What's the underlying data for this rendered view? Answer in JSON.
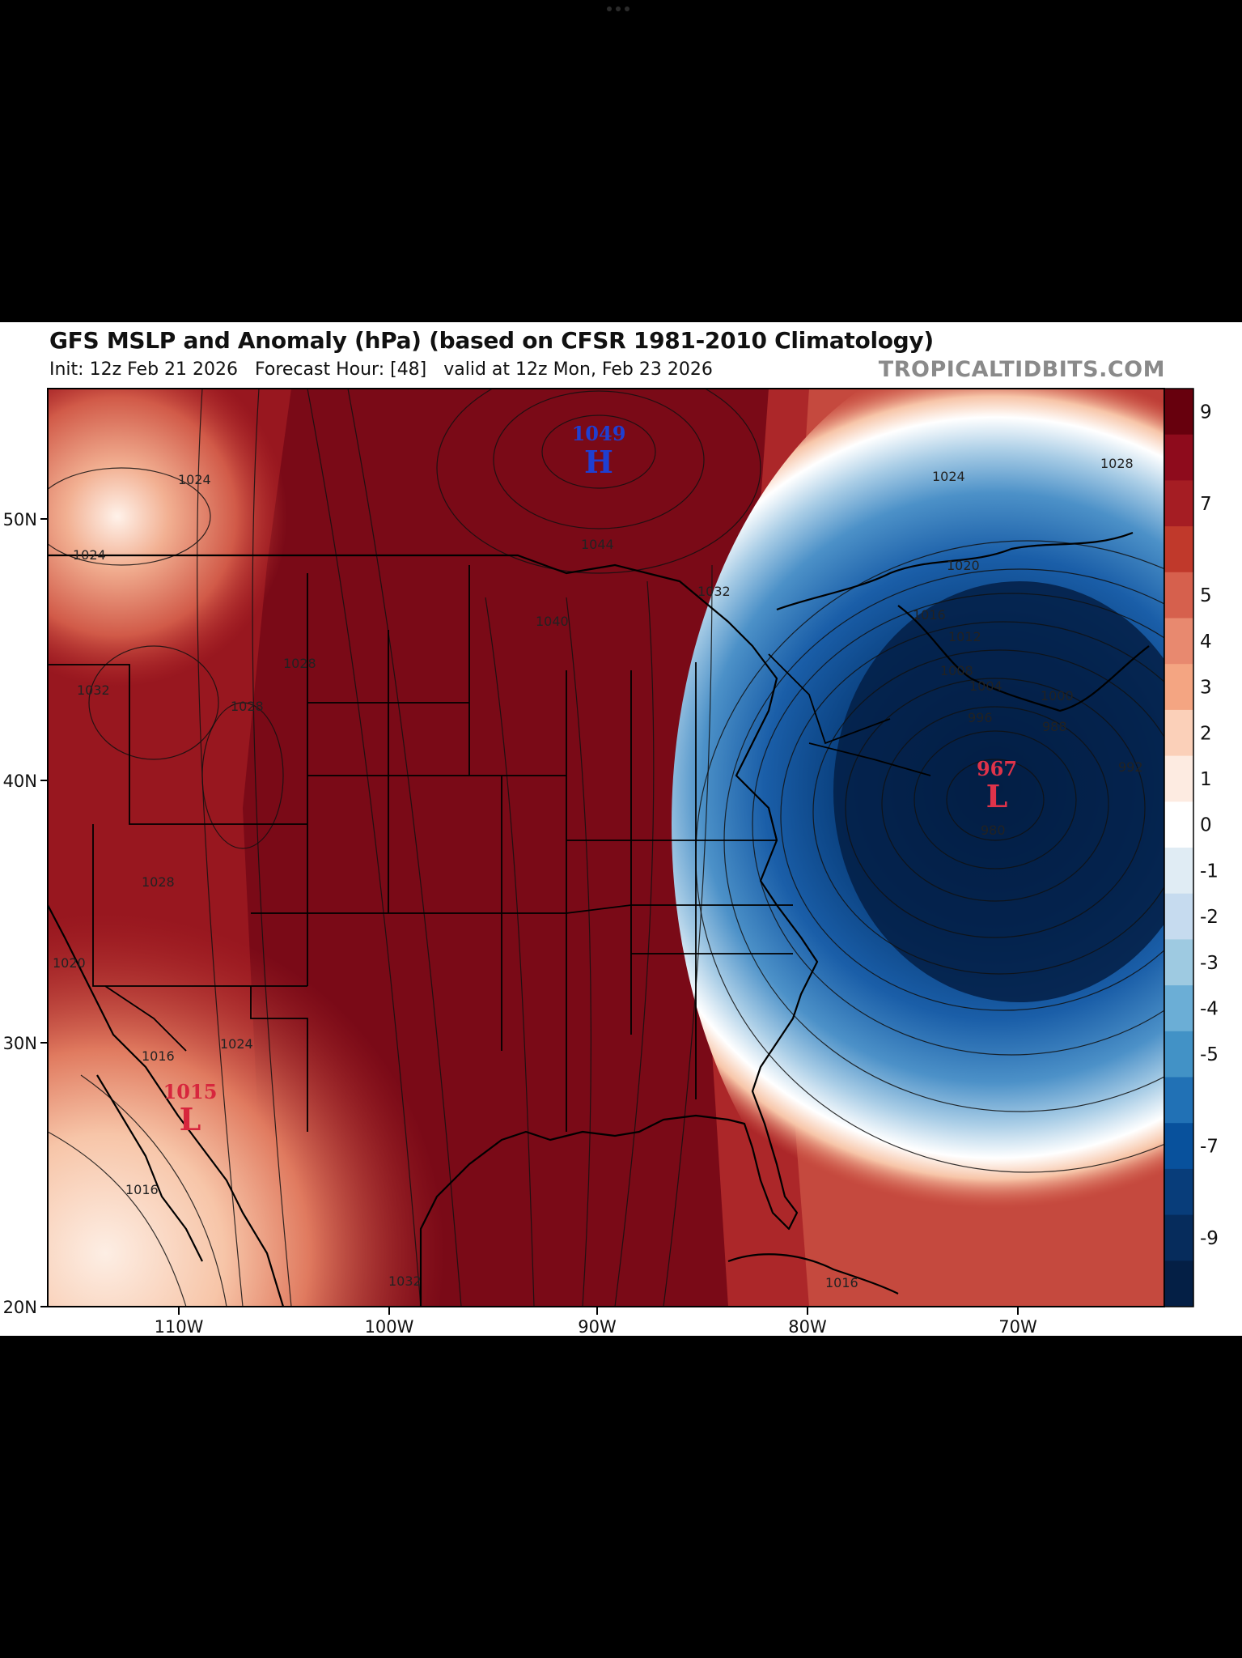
{
  "header": {
    "title": "GFS MSLP and Anomaly (hPa) (based on CFSR 1981-2010 Climatology)",
    "subtitle": "Init: 12z Feb 21 2026   Forecast Hour: [48]   valid at 12z Mon, Feb 23 2026",
    "brand": "TROPICALTIDBITS.COM"
  },
  "map": {
    "type": "mslp-anomaly-map",
    "lon_labels": [
      "110W",
      "100W",
      "90W",
      "80W",
      "70W"
    ],
    "lat_labels": [
      "50N",
      "40N",
      "30N",
      "20N"
    ],
    "lon_range": [
      -116,
      -63
    ],
    "lat_range": [
      20,
      55
    ],
    "pressure_systems": [
      {
        "kind": "H",
        "value": "1049",
        "color": "#1f3fd1"
      },
      {
        "kind": "L",
        "value": "967",
        "color": "#d7263d"
      },
      {
        "kind": "L",
        "value": "1015",
        "color": "#d7263d"
      }
    ],
    "isobar_labels": [
      "1024",
      "1024",
      "1028",
      "1028",
      "1032",
      "1028",
      "1020",
      "1016",
      "1024",
      "1016",
      "1044",
      "1040",
      "1032",
      "1032",
      "1024",
      "1020",
      "1016",
      "1012",
      "1008",
      "1004",
      "1000",
      "996",
      "988",
      "992",
      "980",
      "1016",
      "1028"
    ],
    "colorbar": {
      "labels": [
        "9",
        "7",
        "5",
        "4",
        "3",
        "2",
        "1",
        "0",
        "-1",
        "-2",
        "-3",
        "-4",
        "-5",
        "-7",
        "-9"
      ],
      "colors": [
        "#67000d",
        "#8e0b1c",
        "#a51d23",
        "#c0392b",
        "#d6604d",
        "#e8896f",
        "#f4a582",
        "#fbd0b9",
        "#fdebe1",
        "#ffffff",
        "#e0ecf4",
        "#c6dbef",
        "#9ecae1",
        "#6baed6",
        "#4292c6",
        "#2171b5",
        "#08519c",
        "#083d7a",
        "#062c5c",
        "#041f45"
      ]
    }
  }
}
